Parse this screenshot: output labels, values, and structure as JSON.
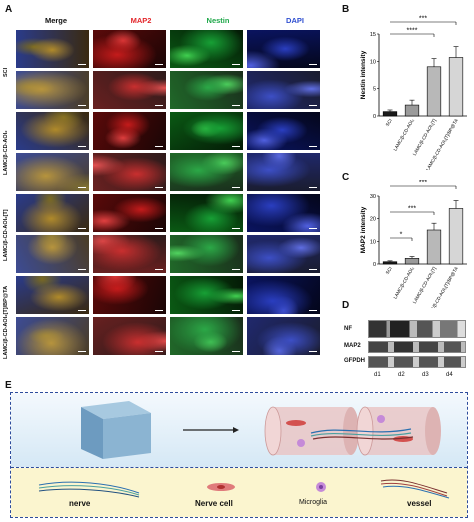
{
  "panels": {
    "a": "A",
    "b": "B",
    "c": "C",
    "d": "D",
    "e": "E"
  },
  "columns": [
    "Merge",
    "MAP2",
    "Nestin",
    "DAPI"
  ],
  "column_colors": [
    "#000000",
    "#e3262b",
    "#1fa84a",
    "#2f4fd0"
  ],
  "rows": [
    "SCI",
    "LAMC/β-CD-AOI₂",
    "LAMC/β-CD-AOI₂[T]",
    "LAMC/β-CD-AOI₂[T]/BP@TA"
  ],
  "chart_data": [
    {
      "type": "bar",
      "ylabel": "Nestin intensity",
      "categories": [
        "SCI",
        "LAMC/β-CD-AOI₂",
        "LAMC/β-CD-AOI₂[T]",
        "LAMC/β-CD-AOI₂[T]/BP@TA"
      ],
      "values": [
        0.8,
        2.0,
        9.0,
        10.7
      ],
      "errors": [
        0.3,
        0.9,
        1.5,
        2.0
      ],
      "ylim": [
        0,
        15
      ],
      "yticks": [
        0,
        5,
        10,
        15
      ],
      "significance": [
        "***",
        "****"
      ]
    },
    {
      "type": "bar",
      "ylabel": "MAP2 intensity",
      "categories": [
        "SCI",
        "LAMC/β-CD-AOI₂",
        "LAMC/β-CD-AOI₂[T]",
        "LAMC/β-CD-AOI₂[T]/BP@TA"
      ],
      "values": [
        1.0,
        2.5,
        15.0,
        24.5
      ],
      "errors": [
        0.4,
        0.8,
        3.0,
        3.5
      ],
      "ylim": [
        0,
        30
      ],
      "yticks": [
        0,
        10,
        20,
        30
      ],
      "significance": [
        "***",
        "***",
        "*"
      ]
    }
  ],
  "blot": {
    "rows": [
      "NF",
      "MAP2",
      "GFPDH"
    ],
    "lanes": [
      "d1",
      "d2",
      "d3",
      "d4"
    ]
  },
  "schematic": {
    "legend": [
      "nerve",
      "Nerve cell",
      "Microglia",
      "vessel"
    ]
  },
  "colors": {
    "bar_fill": [
      "#1a1a1a",
      "#9a9a9a",
      "#b8b8b8",
      "#d6d6d6"
    ],
    "panel_e_border": "#2d4c9c"
  }
}
